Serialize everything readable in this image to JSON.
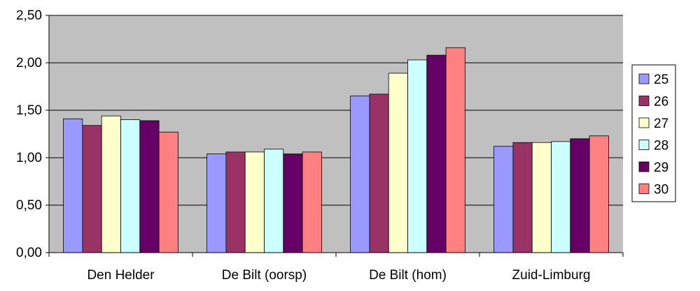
{
  "chart_data": {
    "type": "bar",
    "title": "",
    "xlabel": "",
    "ylabel": "",
    "ylim": [
      0,
      2.5
    ],
    "yticks": [
      "0,00",
      "0,50",
      "1,00",
      "1,50",
      "2,00",
      "2,50"
    ],
    "grid": true,
    "plot_background": "#c0c0c0",
    "legend_position": "right",
    "categories": [
      "Den Helder",
      "De Bilt (oorsp)",
      "De Bilt (hom)",
      "Zuid-Limburg"
    ],
    "series": [
      {
        "name": "25",
        "color": "#9999ff",
        "values": [
          1.41,
          1.04,
          1.65,
          1.12
        ]
      },
      {
        "name": "26",
        "color": "#993366",
        "values": [
          1.34,
          1.06,
          1.67,
          1.16
        ]
      },
      {
        "name": "27",
        "color": "#ffffcc",
        "values": [
          1.44,
          1.06,
          1.89,
          1.16
        ]
      },
      {
        "name": "28",
        "color": "#ccffff",
        "values": [
          1.4,
          1.09,
          2.03,
          1.17
        ]
      },
      {
        "name": "29",
        "color": "#660066",
        "values": [
          1.39,
          1.04,
          2.08,
          1.2
        ]
      },
      {
        "name": "30",
        "color": "#ff8080",
        "values": [
          1.27,
          1.06,
          2.16,
          1.23
        ]
      }
    ]
  }
}
